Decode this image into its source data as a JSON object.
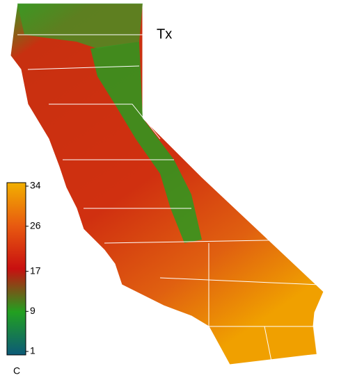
{
  "title": "Tx",
  "colorbar": {
    "lim": [
      1,
      34
    ],
    "ticks": [
      1,
      9,
      17,
      26,
      34
    ],
    "unit": "C",
    "colors": [
      "#0c5a78",
      "#22a020",
      "#c81010",
      "#e85a10",
      "#f2b000"
    ]
  }
}
